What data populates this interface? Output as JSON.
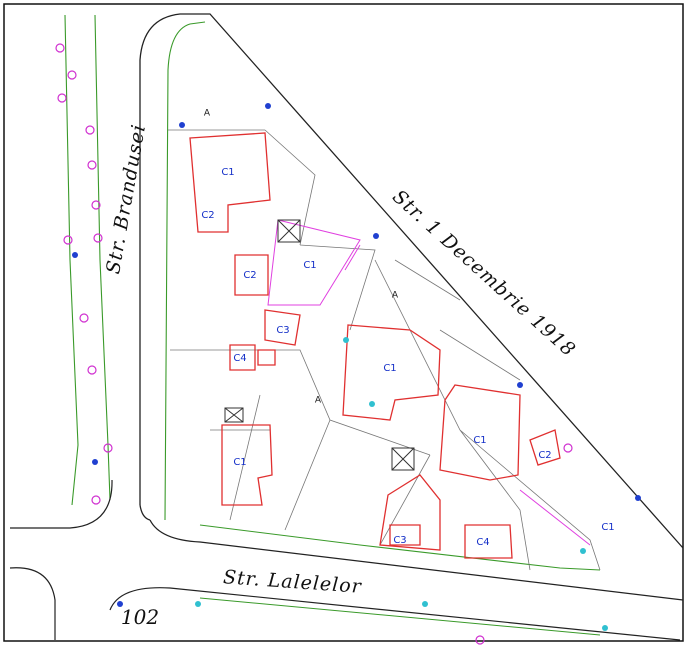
{
  "streets": [
    "Str. Brandusei",
    "Str. 1 Decembrie 1918",
    "Str. Lalelelor"
  ],
  "lot_number": "102",
  "building_labels": [
    "C1",
    "C2",
    "C1",
    "C2",
    "C3",
    "C4",
    "C1",
    "C1",
    "C1",
    "C2",
    "C1",
    "C4",
    "C3"
  ],
  "plot_labels": [
    "A",
    "A",
    "A"
  ]
}
